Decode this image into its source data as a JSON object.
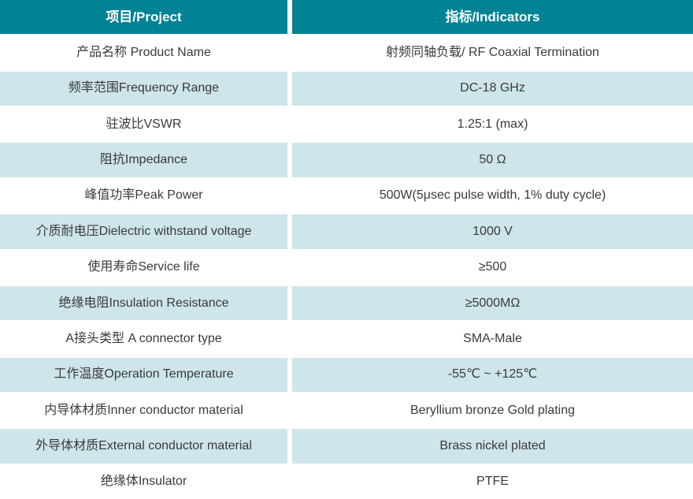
{
  "colors": {
    "header_bg": "#008394",
    "header_text": "#ffffff",
    "row_bg": "#ffffff",
    "alt_row_bg": "#cee5e9",
    "text": "#3a3a3a"
  },
  "table": {
    "header": {
      "project": "项目/Project",
      "indicators": "指标/Indicators"
    },
    "rows": [
      {
        "label": "产品名称 Product Name",
        "value": "射频同轴负载/ RF Coaxial Termination"
      },
      {
        "label": "频率范围Frequency Range",
        "value": "DC-18 GHz"
      },
      {
        "label": "驻波比VSWR",
        "value": "1.25:1 (max)"
      },
      {
        "label": "阻抗Impedance",
        "value": "50 Ω"
      },
      {
        "label": "峰值功率Peak Power",
        "value": "500W(5μsec pulse width, 1% duty cycle)"
      },
      {
        "label": "介质耐电压Dielectric withstand voltage",
        "value": "1000 V"
      },
      {
        "label": "使用寿命Service life",
        "value": "≥500"
      },
      {
        "label": "绝缘电阻Insulation Resistance",
        "value": "≥5000MΩ"
      },
      {
        "label": "A接头类型 A connector type",
        "value": "SMA-Male"
      },
      {
        "label": "工作温度Operation Temperature",
        "value": "-55℃ ~ +125℃"
      },
      {
        "label": "内导体材质Inner conductor material",
        "value": "Beryllium bronze Gold plating"
      },
      {
        "label": "外导体材质External conductor material",
        "value": "Brass nickel plated"
      },
      {
        "label": "绝缘体Insulator",
        "value": "PTFE"
      }
    ]
  }
}
